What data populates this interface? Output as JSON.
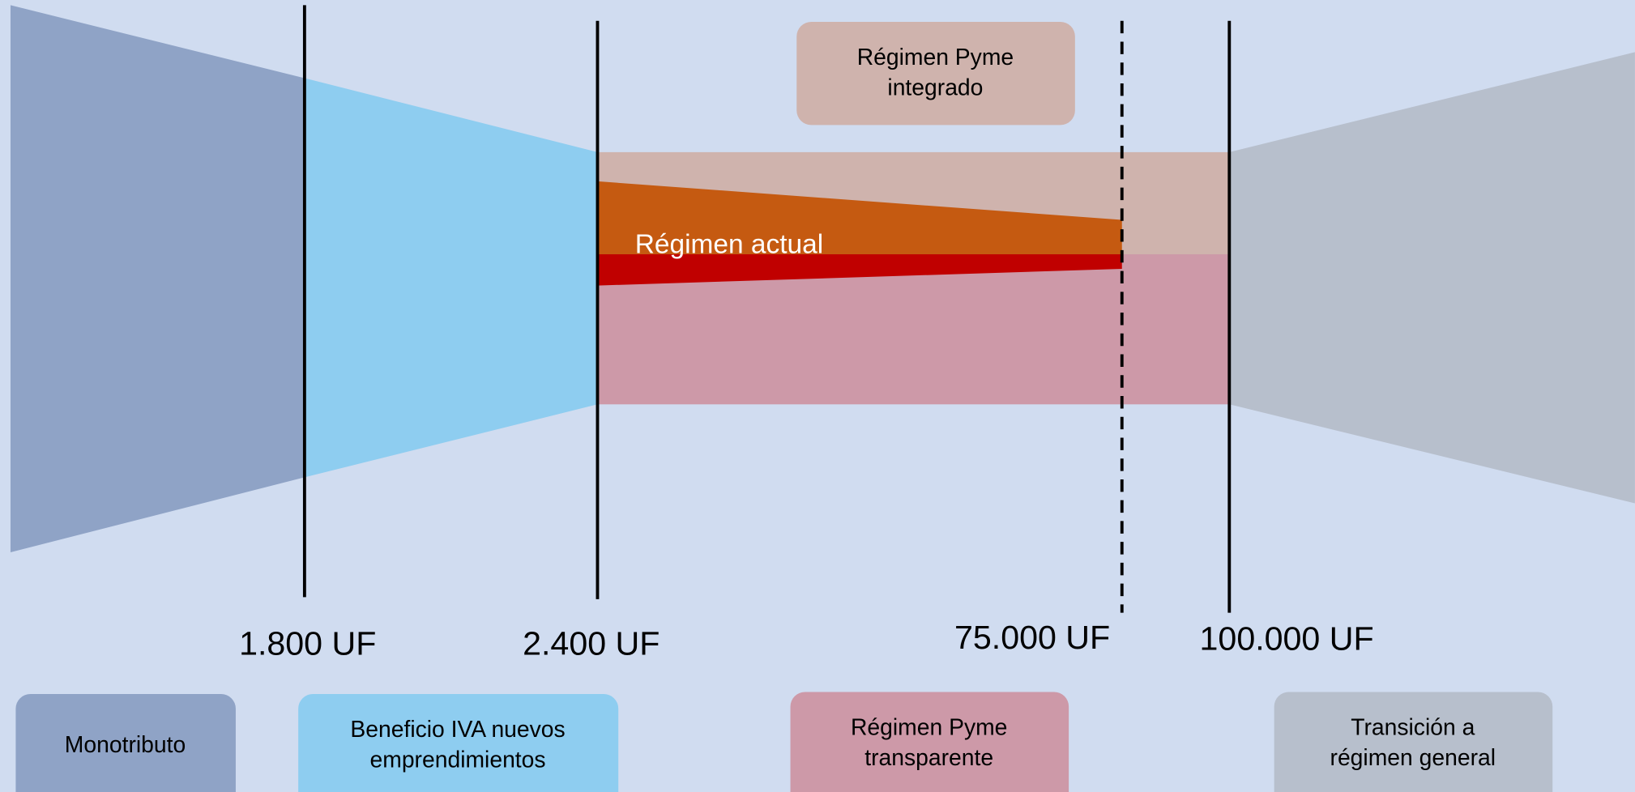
{
  "thresholds": [
    "1.800 UF",
    "2.400 UF",
    "75.000 UF",
    "100.000 UF"
  ],
  "top_box": {
    "lines": [
      "Régimen Pyme",
      "integrado"
    ]
  },
  "band_label": "Régimen actual",
  "legend": [
    {
      "lines": [
        "Monotributo"
      ]
    },
    {
      "lines": [
        "Beneficio IVA nuevos",
        "emprendimientos"
      ]
    },
    {
      "lines": [
        "Régimen Pyme",
        "transparente"
      ]
    },
    {
      "lines": [
        "Transición a",
        "régimen general"
      ]
    }
  ]
}
